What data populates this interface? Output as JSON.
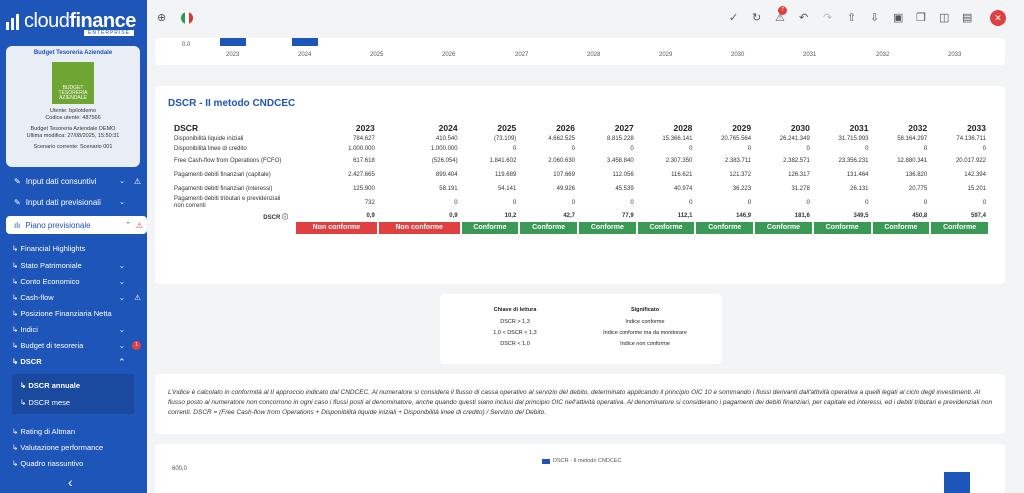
{
  "app": {
    "brand_main": "cloud",
    "brand_bold": "finance",
    "brand_sub": "ENTERPRISE",
    "notifications": "7"
  },
  "card": {
    "title": "Budget Tesoreria Aziendale",
    "thumb_text": "BUDGET TESORERIA AZIENDALE",
    "user_line": "Utente: bpilotdemo",
    "code_line": "Codice utente: 487566",
    "project_line": "Budget Tesoreria Aziendale DEMO",
    "modified_line": "Ultima modifica: 27/08/2025, 15:50:31",
    "scenario_line": "Scenario corrente: Scenario 001"
  },
  "sidebar": {
    "consuntivi": "Input dati consuntivi",
    "previsionali": "Input dati previsionali",
    "piano": "Piano previsionale",
    "subs": [
      "Financial Highlights",
      "Stato Patrimoniale",
      "Conto Economico",
      "Cash-flow",
      "Posizione Finanziaria Netta",
      "Indici",
      "Budget di tesoreria",
      "DSCR"
    ],
    "budget_badge": "1",
    "dscr_items": [
      "DSCR annuale",
      "DSCR mese"
    ],
    "bottom": [
      "Rating di Altman",
      "Valutazione performance",
      "Quadro riassuntivo"
    ]
  },
  "chart_top": {
    "ytick": "0.0",
    "years": [
      "2023",
      "2024",
      "2025",
      "2026",
      "2027",
      "2028",
      "2029",
      "2030",
      "2031",
      "2032",
      "2033"
    ]
  },
  "dscr_title": "DSCR - II metodo CNDCEC",
  "table": {
    "header": "DSCR",
    "years": [
      "2023",
      "2024",
      "2025",
      "2026",
      "2027",
      "2028",
      "2029",
      "2030",
      "2031",
      "2032",
      "2033"
    ],
    "rows": [
      {
        "label": "Disponibilità liquide iniziali",
        "values": [
          "784.627",
          "410.540",
          "(73.109)",
          "4.662.525",
          "8.815.228",
          "15.366.141",
          "20.765.564",
          "26.241.349",
          "31.715.993",
          "58.164.297",
          "74.136.711"
        ]
      },
      {
        "label": "Disponibilità linee di credito",
        "values": [
          "1.000.000",
          "1.000.000",
          "0",
          "0",
          "0",
          "0",
          "0",
          "0",
          "0",
          "0",
          "0"
        ]
      },
      {
        "label": "Free Cash-flow from Operations (FCFO)",
        "values": [
          "617.618",
          "(526.054)",
          "1.841.602",
          "2.060.630",
          "3.458.840",
          "2.307.350",
          "2.383.711",
          "2.382.571",
          "23.356.231",
          "12.880.341",
          "20.017.922"
        ]
      },
      {
        "label": "Pagamenti debiti finanziari (capitale)",
        "values": [
          "2.427.665",
          "899.404",
          "119.689",
          "107.669",
          "112.056",
          "116.621",
          "121.372",
          "126.317",
          "131.464",
          "136.820",
          "142.394"
        ]
      },
      {
        "label": "Pagamenti debiti finanziari (interessi)",
        "values": [
          "125.900",
          "58.191",
          "54.141",
          "49.926",
          "45.539",
          "40.974",
          "36.223",
          "31.278",
          "26.131",
          "20.775",
          "15.201"
        ]
      },
      {
        "label": "Pagamenti debiti tributari e previdenziali non correnti",
        "values": [
          "732",
          "0",
          "0",
          "0",
          "0",
          "0",
          "0",
          "0",
          "0",
          "0",
          "0"
        ]
      }
    ],
    "dscr_label": "DSCR",
    "dscr_values": [
      "0,9",
      "0,9",
      "10,2",
      "42,7",
      "77,9",
      "112,1",
      "146,9",
      "181,6",
      "349,5",
      "450,8",
      "597,4"
    ],
    "status": [
      "Non conforme",
      "Non conforme",
      "Conforme",
      "Conforme",
      "Conforme",
      "Conforme",
      "Conforme",
      "Conforme",
      "Conforme",
      "Conforme",
      "Conforme"
    ]
  },
  "key": {
    "h1": "Chiave di lettura",
    "h2": "Significato",
    "rows": [
      [
        "DSCR > 1,3",
        "Indice conforme"
      ],
      [
        "1,0 < DSCR < 1,3",
        "Indice conforme ma da monitorare"
      ],
      [
        "DSCR < 1,0",
        "Indice non conforme"
      ]
    ]
  },
  "note": "L'indice è calcolato in conformità al II approccio indicato dal CNDCEC. Al numeratore si considera il flusso di cassa operativo al servizio del debito, determinato applicando il principio OIC 10 e sommando i flussi derivanti dall'attività operativa a quelli legati al ciclo degli investimenti. Al flusso posto al numeratore non concorrono in ogni caso i flussi posti al denominatore, anche quando questi siano inclusi dal principio OIC nell'attività operativa. Al denominatore si considerano i pagamenti dei debiti finanziari, per capitale ed interessi, ed i debiti tributari e previdenziali non correnti. DSCR = (Free Cash-flow from Operations + Disponibilità liquide iniziali + Disponibilità linee di credito) / Servizio del Debito.",
  "chart_bottom": {
    "legend": "DSCR - II metodo CNDCEC",
    "ytick": "600,0"
  },
  "colors": {
    "sidebar": "#1e55b8",
    "ok": "#3a9a55",
    "ko": "#e04040"
  }
}
